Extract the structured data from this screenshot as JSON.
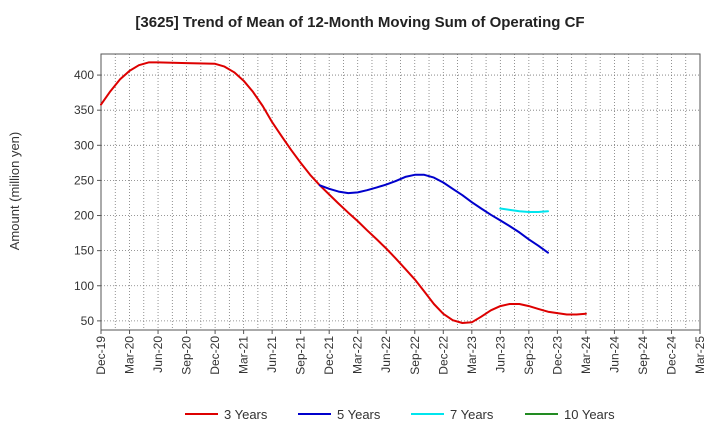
{
  "chart_data": {
    "type": "line",
    "title": "[3625]  Trend of Mean of 12-Month Moving Sum of Operating CF",
    "xlabel": "",
    "ylabel": "Amount (million yen)",
    "ylim": [
      37,
      430
    ],
    "yticks": [
      50,
      100,
      150,
      200,
      250,
      300,
      350,
      400
    ],
    "grid": true,
    "legend_position": "bottom",
    "categories": [
      "Dec-19",
      "Mar-20",
      "Jun-20",
      "Sep-20",
      "Dec-20",
      "Mar-21",
      "Jun-21",
      "Sep-21",
      "Dec-21",
      "Mar-22",
      "Jun-22",
      "Sep-22",
      "Dec-22",
      "Mar-23",
      "Jun-23",
      "Sep-23",
      "Dec-23",
      "Mar-24",
      "Jun-24",
      "Sep-24",
      "Dec-24",
      "Mar-25"
    ],
    "series": [
      {
        "name": "3 Years",
        "color": "#dd0000",
        "points": [
          [
            0,
            358
          ],
          [
            0.33,
            377
          ],
          [
            0.67,
            394
          ],
          [
            1,
            406
          ],
          [
            1.33,
            414
          ],
          [
            1.67,
            418
          ],
          [
            2,
            418
          ],
          [
            3,
            417
          ],
          [
            4,
            416
          ],
          [
            4.33,
            412
          ],
          [
            4.67,
            404
          ],
          [
            5,
            392
          ],
          [
            5.33,
            376
          ],
          [
            5.67,
            356
          ],
          [
            6,
            333
          ],
          [
            6.33,
            313
          ],
          [
            6.67,
            293
          ],
          [
            7,
            275
          ],
          [
            7.33,
            258
          ],
          [
            7.67,
            243
          ],
          [
            8,
            230
          ],
          [
            8.33,
            217
          ],
          [
            8.67,
            204
          ],
          [
            9,
            192
          ],
          [
            9.33,
            179
          ],
          [
            9.67,
            166
          ],
          [
            10,
            153
          ],
          [
            10.33,
            139
          ],
          [
            10.67,
            124
          ],
          [
            11,
            109
          ],
          [
            11.33,
            92
          ],
          [
            11.67,
            74
          ],
          [
            12,
            60
          ],
          [
            12.33,
            51
          ],
          [
            12.67,
            47
          ],
          [
            13,
            48
          ],
          [
            13.33,
            56
          ],
          [
            13.67,
            65
          ],
          [
            14,
            71
          ],
          [
            14.33,
            74
          ],
          [
            14.67,
            74
          ],
          [
            15,
            71
          ],
          [
            15.33,
            67
          ],
          [
            15.67,
            63
          ],
          [
            16,
            61
          ],
          [
            16.33,
            59
          ],
          [
            16.67,
            59
          ],
          [
            17,
            60
          ]
        ]
      },
      {
        "name": "5 Years",
        "color": "#0000cc",
        "points": [
          [
            7.67,
            243
          ],
          [
            8,
            238
          ],
          [
            8.33,
            234
          ],
          [
            8.67,
            232
          ],
          [
            9,
            233
          ],
          [
            9.33,
            236
          ],
          [
            9.67,
            240
          ],
          [
            10,
            244
          ],
          [
            10.33,
            249
          ],
          [
            10.67,
            255
          ],
          [
            11,
            258
          ],
          [
            11.33,
            258
          ],
          [
            11.67,
            254
          ],
          [
            12,
            247
          ],
          [
            12.33,
            238
          ],
          [
            12.67,
            229
          ],
          [
            13,
            219
          ],
          [
            13.33,
            210
          ],
          [
            13.67,
            201
          ],
          [
            14,
            193
          ],
          [
            14.33,
            185
          ],
          [
            14.67,
            176
          ],
          [
            15,
            166
          ],
          [
            15.33,
            157
          ],
          [
            15.67,
            147
          ]
        ]
      },
      {
        "name": "7 Years",
        "color": "#00e5ee",
        "points": [
          [
            14,
            210
          ],
          [
            14.33,
            208
          ],
          [
            14.67,
            206
          ],
          [
            15,
            205
          ],
          [
            15.33,
            205
          ],
          [
            15.67,
            206
          ]
        ]
      },
      {
        "name": "10 Years",
        "color": "#228b22",
        "points": []
      }
    ]
  }
}
